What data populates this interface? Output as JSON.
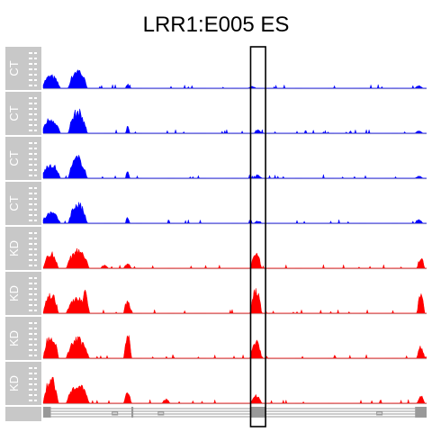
{
  "chart_data": {
    "type": "area",
    "title": "LRR1:E005 ES",
    "x_domain": [
      0,
      1
    ],
    "highlight_x": [
      0.541,
      0.58
    ],
    "colors": {
      "CT": "#0000ff",
      "KD": "#ff0000",
      "label_bg": "#c8c8c8",
      "label_text": "#ffffff",
      "baseline": "#bbbbbb",
      "gene_track": "#999999"
    },
    "tracks": [
      {
        "label": "CT",
        "peaks": [
          [
            0.02,
            0.05,
            0.35
          ],
          [
            0.09,
            0.05,
            0.52
          ],
          [
            0.22,
            0.01,
            0.12
          ],
          [
            0.545,
            0.02,
            0.05
          ],
          [
            0.98,
            0.02,
            0.07
          ]
        ]
      },
      {
        "label": "CT",
        "peaks": [
          [
            0.02,
            0.05,
            0.42
          ],
          [
            0.09,
            0.05,
            0.62
          ],
          [
            0.22,
            0.01,
            0.18
          ],
          [
            0.56,
            0.02,
            0.1
          ],
          [
            0.98,
            0.02,
            0.06
          ]
        ]
      },
      {
        "label": "CT",
        "peaks": [
          [
            0.02,
            0.05,
            0.4
          ],
          [
            0.09,
            0.05,
            0.58
          ],
          [
            0.22,
            0.01,
            0.22
          ],
          [
            0.56,
            0.02,
            0.08
          ],
          [
            0.98,
            0.02,
            0.06
          ]
        ]
      },
      {
        "label": "CT",
        "peaks": [
          [
            0.02,
            0.05,
            0.3
          ],
          [
            0.09,
            0.05,
            0.55
          ],
          [
            0.22,
            0.01,
            0.18
          ],
          [
            0.56,
            0.02,
            0.06
          ],
          [
            0.98,
            0.02,
            0.11
          ]
        ]
      },
      {
        "label": "KD",
        "peaks": [
          [
            0.02,
            0.04,
            0.42
          ],
          [
            0.09,
            0.06,
            0.5
          ],
          [
            0.16,
            0.02,
            0.08
          ],
          [
            0.22,
            0.02,
            0.12
          ],
          [
            0.555,
            0.03,
            0.38
          ],
          [
            0.985,
            0.02,
            0.28
          ]
        ]
      },
      {
        "label": "KD",
        "peaks": [
          [
            0.02,
            0.04,
            0.55
          ],
          [
            0.09,
            0.06,
            0.45
          ],
          [
            0.11,
            0.02,
            0.58
          ],
          [
            0.22,
            0.02,
            0.35
          ],
          [
            0.555,
            0.03,
            0.7
          ],
          [
            0.985,
            0.02,
            0.5
          ]
        ]
      },
      {
        "label": "KD",
        "peaks": [
          [
            0.02,
            0.04,
            0.7
          ],
          [
            0.09,
            0.06,
            0.55
          ],
          [
            0.22,
            0.02,
            0.72
          ],
          [
            0.555,
            0.03,
            0.48
          ],
          [
            0.985,
            0.02,
            0.32
          ]
        ]
      },
      {
        "label": "KD",
        "peaks": [
          [
            0.02,
            0.04,
            0.7
          ],
          [
            0.09,
            0.06,
            0.55
          ],
          [
            0.22,
            0.02,
            0.3
          ],
          [
            0.32,
            0.02,
            0.12
          ],
          [
            0.555,
            0.03,
            0.22
          ],
          [
            0.985,
            0.02,
            0.2
          ]
        ]
      }
    ]
  }
}
